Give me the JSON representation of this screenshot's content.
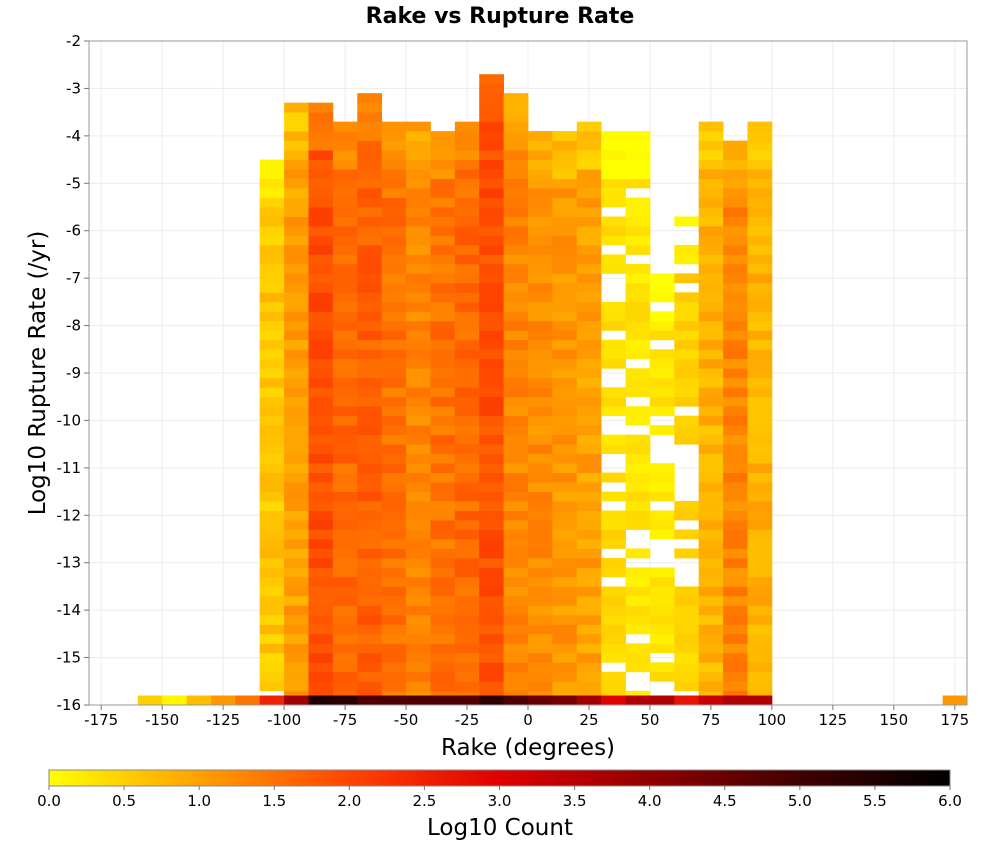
{
  "chart_data": {
    "type": "heatmap",
    "title": "Rake vs Rupture Rate",
    "xlabel": "Rake (degrees)",
    "ylabel": "Log10 Rupture Rate (/yr)",
    "xlim": [
      -180,
      180
    ],
    "ylim": [
      -16,
      -2
    ],
    "x_bin_width": 10,
    "y_bin_height": 0.2,
    "xticks": [
      -175,
      -150,
      -125,
      -100,
      -75,
      -50,
      -25,
      0,
      25,
      50,
      75,
      100,
      125,
      150,
      175
    ],
    "yticks": [
      -2,
      -3,
      -4,
      -5,
      -6,
      -7,
      -8,
      -9,
      -10,
      -11,
      -12,
      -13,
      -14,
      -15,
      -16
    ],
    "grid": true,
    "colorbar": {
      "label": "Log10 Count",
      "range": [
        0,
        6
      ],
      "ticks": [
        "0.0",
        "0.5",
        "1.0",
        "1.5",
        "2.0",
        "2.5",
        "3.0",
        "3.5",
        "4.0",
        "4.5",
        "5.0",
        "5.5",
        "6.0"
      ],
      "colors": [
        "#ffff00",
        "#ffa000",
        "#ff4400",
        "#e00000",
        "#900000",
        "#400000",
        "#000000"
      ],
      "placement": "bottom"
    },
    "bottom_row_y": -16,
    "bottom_row": [
      {
        "x": -155,
        "z": 0.5
      },
      {
        "x": -145,
        "z": 0.1
      },
      {
        "x": -135,
        "z": 0.7
      },
      {
        "x": -125,
        "z": 1.1
      },
      {
        "x": -115,
        "z": 1.5
      },
      {
        "x": -105,
        "z": 2.5
      },
      {
        "x": -95,
        "z": 3.8
      },
      {
        "x": -85,
        "z": 5.5
      },
      {
        "x": -75,
        "z": 5.3
      },
      {
        "x": -65,
        "z": 4.8
      },
      {
        "x": -55,
        "z": 4.8
      },
      {
        "x": -45,
        "z": 4.8
      },
      {
        "x": -35,
        "z": 4.8
      },
      {
        "x": -25,
        "z": 4.8
      },
      {
        "x": -15,
        "z": 5.3
      },
      {
        "x": -5,
        "z": 4.8
      },
      {
        "x": 5,
        "z": 4.5
      },
      {
        "x": 15,
        "z": 4.3
      },
      {
        "x": 25,
        "z": 3.8
      },
      {
        "x": 35,
        "z": 3.0
      },
      {
        "x": 45,
        "z": 3.6
      },
      {
        "x": 55,
        "z": 3.6
      },
      {
        "x": 65,
        "z": 2.7
      },
      {
        "x": 75,
        "z": 3.3
      },
      {
        "x": 85,
        "z": 3.6
      },
      {
        "x": 95,
        "z": 3.6
      },
      {
        "x": 175,
        "z": 1.1
      }
    ],
    "columns": [
      {
        "x": -105,
        "y_range": [
          -15.6,
          -4.6
        ],
        "z_typical": 0.6
      },
      {
        "x": -95,
        "y_range": [
          -15.8,
          -3.5
        ],
        "z_typical": 1.0
      },
      {
        "x": -85,
        "y_range": [
          -15.8,
          -3.5
        ],
        "z_typical": 1.9
      },
      {
        "x": -75,
        "y_range": [
          -15.8,
          -3.8
        ],
        "z_typical": 1.6
      },
      {
        "x": -65,
        "y_range": [
          -15.8,
          -3.2
        ],
        "z_typical": 1.7
      },
      {
        "x": -55,
        "y_range": [
          -15.8,
          -3.8
        ],
        "z_typical": 1.5
      },
      {
        "x": -45,
        "y_range": [
          -15.8,
          -3.8
        ],
        "z_typical": 1.3
      },
      {
        "x": -35,
        "y_range": [
          -15.8,
          -4.1
        ],
        "z_typical": 1.5
      },
      {
        "x": -25,
        "y_range": [
          -15.8,
          -3.8
        ],
        "z_typical": 1.6
      },
      {
        "x": -15,
        "y_range": [
          -15.8,
          -2.9
        ],
        "z_typical": 1.9
      },
      {
        "x": -5,
        "y_range": [
          -15.8,
          -3.2
        ],
        "z_typical": 1.3
      },
      {
        "x": 5,
        "y_range": [
          -15.8,
          -4.1
        ],
        "z_typical": 1.2
      },
      {
        "x": 15,
        "y_range": [
          -15.8,
          -4.1
        ],
        "z_typical": 1.1
      },
      {
        "x": 25,
        "y_range": [
          -15.8,
          -3.8
        ],
        "z_typical": 1.0
      },
      {
        "x": 35,
        "y_range": [
          -15.8,
          -4.1
        ],
        "z_typical": 0.3
      },
      {
        "x": 45,
        "y_range": [
          -15.8,
          -4.1
        ],
        "z_typical": 0.2
      },
      {
        "x": 55,
        "y_range": [
          -15.6,
          -7.0
        ],
        "z_typical": 0.2
      },
      {
        "x": 65,
        "y_range": [
          -15.6,
          -5.8
        ],
        "z_typical": 0.4
      },
      {
        "x": 75,
        "y_range": [
          -15.8,
          -3.8
        ],
        "z_typical": 0.8
      },
      {
        "x": 85,
        "y_range": [
          -15.8,
          -4.3
        ],
        "z_typical": 1.3
      },
      {
        "x": 95,
        "y_range": [
          -15.8,
          -3.8
        ],
        "z_typical": 0.8
      }
    ]
  }
}
